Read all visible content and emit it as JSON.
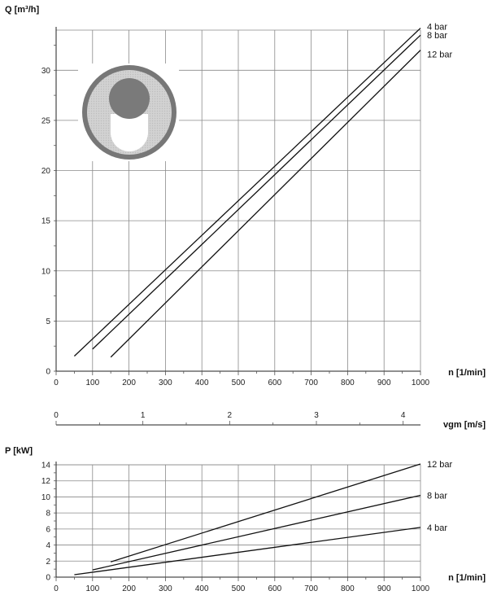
{
  "chart_data": [
    {
      "type": "line",
      "ylabel": "Q [m³/h]",
      "xlabel": "n [1/min]",
      "xlim": [
        0,
        1000
      ],
      "ylim": [
        0,
        34
      ],
      "x_ticks": [
        0,
        100,
        200,
        300,
        400,
        500,
        600,
        700,
        800,
        900,
        1000
      ],
      "y_ticks": [
        0,
        5,
        10,
        15,
        20,
        25,
        30
      ],
      "grid": true,
      "series": [
        {
          "name": "4 bar",
          "x": [
            50,
            1000
          ],
          "y": [
            1.5,
            34.2
          ]
        },
        {
          "name": "8 bar",
          "x": [
            100,
            1000
          ],
          "y": [
            2.2,
            33.5
          ]
        },
        {
          "name": "12 bar",
          "x": [
            150,
            1000
          ],
          "y": [
            1.4,
            32.0
          ]
        }
      ]
    },
    {
      "type": "axis",
      "xlabel": "vgm [m/s]",
      "xlim": [
        0,
        4.2
      ],
      "x_ticks": [
        0,
        1,
        2,
        3,
        4
      ]
    },
    {
      "type": "line",
      "ylabel": "P [kW]",
      "xlabel": "n [1/min]",
      "xlim": [
        0,
        1000
      ],
      "ylim": [
        0,
        14
      ],
      "x_ticks": [
        0,
        100,
        200,
        300,
        400,
        500,
        600,
        700,
        800,
        900,
        1000
      ],
      "y_ticks": [
        0,
        2,
        4,
        6,
        8,
        10,
        12,
        14
      ],
      "grid": true,
      "series": [
        {
          "name": "12 bar",
          "x": [
            150,
            1000
          ],
          "y": [
            1.9,
            14.1
          ]
        },
        {
          "name": "8 bar",
          "x": [
            100,
            1000
          ],
          "y": [
            0.9,
            10.2
          ]
        },
        {
          "name": "4 bar",
          "x": [
            50,
            1000
          ],
          "y": [
            0.3,
            6.2
          ]
        }
      ]
    }
  ],
  "colors": {
    "grid": "#8a8a8a",
    "line": "#111111",
    "pump_outer": "#777777",
    "pump_inner": "#cfcfcf",
    "pump_rotor": "#7a7a7a",
    "pump_slot": "#ffffff"
  },
  "icons": {
    "pump_cross_section": "pump-cross-section-icon"
  }
}
